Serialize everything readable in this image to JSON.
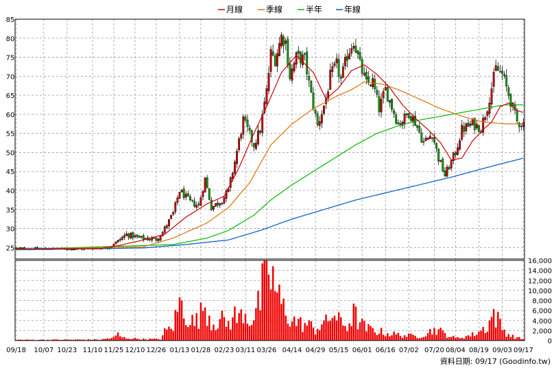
{
  "chart_data": {
    "type": "candlestick",
    "legend": [
      {
        "label": "月線",
        "color": "#cc0000"
      },
      {
        "label": "季線",
        "color": "#e07000"
      },
      {
        "label": "半年",
        "color": "#00bb00"
      },
      {
        "label": "年線",
        "color": "#0055cc"
      }
    ],
    "price_axis": {
      "min": 22,
      "max": 85,
      "ticks": [
        25,
        30,
        35,
        40,
        45,
        50,
        55,
        60,
        65,
        70,
        75,
        80,
        85
      ]
    },
    "volume_axis": {
      "min": 0,
      "max": 16000,
      "ticks": [
        0,
        2000,
        4000,
        6000,
        8000,
        10000,
        12000,
        14000,
        16000
      ],
      "tick_labels": [
        "0",
        "2,000",
        "4,000",
        "6,000",
        "8,000",
        "10,000",
        "12,000",
        "14,000",
        "16,000"
      ]
    },
    "x_labels": [
      "09/18",
      "10/07",
      "10/23",
      "11/10",
      "11/25",
      "12/10",
      "12/26",
      "01/13",
      "01/28",
      "02/23",
      "03/11",
      "03/26",
      "04/14",
      "04/29",
      "05/15",
      "06/01",
      "06/16",
      "07/02",
      "07/20",
      "08/04",
      "08/19",
      "09/03",
      "09/17"
    ],
    "x_label_index": [
      0,
      13,
      24,
      36,
      46,
      56,
      66,
      77,
      87,
      98,
      108,
      118,
      130,
      141,
      152,
      163,
      174,
      185,
      197,
      207,
      218,
      229,
      239
    ],
    "close_anchors": [
      [
        0,
        24.8
      ],
      [
        30,
        24.6
      ],
      [
        44,
        25.0
      ],
      [
        46,
        26.0
      ],
      [
        52,
        28.5
      ],
      [
        58,
        27.5
      ],
      [
        66,
        27.2
      ],
      [
        69,
        29.0
      ],
      [
        74,
        34.0
      ],
      [
        77,
        40.0
      ],
      [
        82,
        37.0
      ],
      [
        86,
        36.0
      ],
      [
        89,
        43.0
      ],
      [
        92,
        35.5
      ],
      [
        97,
        37.5
      ],
      [
        100,
        40.0
      ],
      [
        103,
        47.5
      ],
      [
        107,
        58.5
      ],
      [
        112,
        52.0
      ],
      [
        115,
        56.0
      ],
      [
        118,
        66.0
      ],
      [
        120,
        76.0
      ],
      [
        122,
        74.5
      ],
      [
        125,
        80.5
      ],
      [
        127,
        79.0
      ],
      [
        129,
        70.0
      ],
      [
        132,
        75.0
      ],
      [
        136,
        74.5
      ],
      [
        139,
        65.0
      ],
      [
        142,
        57.0
      ],
      [
        146,
        64.0
      ],
      [
        148,
        70.0
      ],
      [
        151,
        73.0
      ],
      [
        153,
        69.0
      ],
      [
        156,
        75.5
      ],
      [
        159,
        79.5
      ],
      [
        162,
        73.0
      ],
      [
        165,
        68.0
      ],
      [
        168,
        68.5
      ],
      [
        171,
        61.5
      ],
      [
        174,
        66.5
      ],
      [
        177,
        62.0
      ],
      [
        180,
        57.5
      ],
      [
        183,
        59.0
      ],
      [
        185,
        60.5
      ],
      [
        188,
        58.0
      ],
      [
        192,
        52.5
      ],
      [
        196,
        55.0
      ],
      [
        199,
        48.5
      ],
      [
        202,
        44.0
      ],
      [
        205,
        47.5
      ],
      [
        207,
        50.0
      ],
      [
        210,
        56.0
      ],
      [
        215,
        57.5
      ],
      [
        219,
        56.5
      ],
      [
        222,
        62.0
      ],
      [
        226,
        72.0
      ],
      [
        229,
        70.5
      ],
      [
        231,
        67.0
      ],
      [
        233,
        63.5
      ],
      [
        236,
        58.0
      ],
      [
        239,
        57.5
      ]
    ],
    "ma_month": [
      [
        0,
        24.7
      ],
      [
        40,
        24.7
      ],
      [
        48,
        25.5
      ],
      [
        60,
        27.0
      ],
      [
        70,
        28.5
      ],
      [
        80,
        33.0
      ],
      [
        90,
        36.5
      ],
      [
        98,
        38.5
      ],
      [
        105,
        46.0
      ],
      [
        112,
        55.0
      ],
      [
        118,
        62.0
      ],
      [
        125,
        71.0
      ],
      [
        132,
        75.5
      ],
      [
        140,
        71.0
      ],
      [
        146,
        64.0
      ],
      [
        152,
        67.0
      ],
      [
        158,
        71.5
      ],
      [
        164,
        73.0
      ],
      [
        170,
        70.5
      ],
      [
        176,
        67.0
      ],
      [
        182,
        62.5
      ],
      [
        188,
        59.0
      ],
      [
        194,
        56.0
      ],
      [
        200,
        52.5
      ],
      [
        205,
        48.0
      ],
      [
        210,
        48.5
      ],
      [
        215,
        53.0
      ],
      [
        220,
        56.0
      ],
      [
        224,
        58.0
      ],
      [
        228,
        62.0
      ],
      [
        232,
        63.0
      ],
      [
        236,
        61.0
      ],
      [
        239,
        60.5
      ]
    ],
    "ma_quarter": [
      [
        0,
        24.6
      ],
      [
        60,
        25.2
      ],
      [
        74,
        27.5
      ],
      [
        90,
        31.5
      ],
      [
        100,
        35.5
      ],
      [
        110,
        42.0
      ],
      [
        120,
        52.0
      ],
      [
        130,
        57.5
      ],
      [
        140,
        61.5
      ],
      [
        150,
        64.5
      ],
      [
        158,
        66.5
      ],
      [
        164,
        68.5
      ],
      [
        172,
        68.0
      ],
      [
        180,
        66.5
      ],
      [
        190,
        64.0
      ],
      [
        200,
        61.5
      ],
      [
        210,
        59.5
      ],
      [
        220,
        58.0
      ],
      [
        230,
        57.5
      ],
      [
        239,
        57.5
      ]
    ],
    "ma_half": [
      [
        0,
        24.5
      ],
      [
        74,
        25.8
      ],
      [
        90,
        27.5
      ],
      [
        100,
        29.5
      ],
      [
        112,
        33.5
      ],
      [
        120,
        37.5
      ],
      [
        130,
        41.5
      ],
      [
        140,
        45.0
      ],
      [
        150,
        48.5
      ],
      [
        160,
        52.0
      ],
      [
        170,
        55.0
      ],
      [
        180,
        57.0
      ],
      [
        190,
        58.5
      ],
      [
        200,
        59.5
      ],
      [
        210,
        60.5
      ],
      [
        220,
        61.5
      ],
      [
        230,
        62.5
      ],
      [
        239,
        62.5
      ]
    ],
    "ma_year": [
      [
        0,
        24.4
      ],
      [
        60,
        24.9
      ],
      [
        80,
        25.8
      ],
      [
        100,
        27.0
      ],
      [
        115,
        29.5
      ],
      [
        130,
        32.5
      ],
      [
        145,
        35.0
      ],
      [
        160,
        37.5
      ],
      [
        175,
        39.5
      ],
      [
        190,
        41.5
      ],
      [
        205,
        43.5
      ],
      [
        215,
        45.0
      ],
      [
        225,
        46.5
      ],
      [
        239,
        48.5
      ]
    ],
    "volume_anchors": [
      [
        0,
        150
      ],
      [
        40,
        200
      ],
      [
        46,
        600
      ],
      [
        48,
        1300
      ],
      [
        50,
        600
      ],
      [
        60,
        300
      ],
      [
        68,
        300
      ],
      [
        70,
        1800
      ],
      [
        74,
        3000
      ],
      [
        77,
        8000
      ],
      [
        80,
        5500
      ],
      [
        84,
        3500
      ],
      [
        87,
        5500
      ],
      [
        89,
        7800
      ],
      [
        92,
        3800
      ],
      [
        97,
        4200
      ],
      [
        100,
        3500
      ],
      [
        103,
        5200
      ],
      [
        105,
        4400
      ],
      [
        107,
        6600
      ],
      [
        110,
        4200
      ],
      [
        112,
        5000
      ],
      [
        115,
        8200
      ],
      [
        117,
        13500
      ],
      [
        118,
        16000
      ],
      [
        120,
        13800
      ],
      [
        122,
        11000
      ],
      [
        124,
        8400
      ],
      [
        126,
        6800
      ],
      [
        128,
        5400
      ],
      [
        130,
        4300
      ],
      [
        134,
        3500
      ],
      [
        138,
        3200
      ],
      [
        141,
        2300
      ],
      [
        144,
        3600
      ],
      [
        147,
        3700
      ],
      [
        149,
        6000
      ],
      [
        152,
        4000
      ],
      [
        156,
        3000
      ],
      [
        159,
        5600
      ],
      [
        162,
        3600
      ],
      [
        165,
        2500
      ],
      [
        170,
        2000
      ],
      [
        175,
        1500
      ],
      [
        180,
        1200
      ],
      [
        185,
        1000
      ],
      [
        190,
        900
      ],
      [
        195,
        1900
      ],
      [
        198,
        2400
      ],
      [
        201,
        1600
      ],
      [
        204,
        1000
      ],
      [
        207,
        500
      ],
      [
        210,
        700
      ],
      [
        215,
        1200
      ],
      [
        219,
        2100
      ],
      [
        222,
        3000
      ],
      [
        225,
        5700
      ],
      [
        227,
        4200
      ],
      [
        230,
        2000
      ],
      [
        233,
        1000
      ],
      [
        236,
        600
      ],
      [
        239,
        300
      ]
    ],
    "total_days": 240,
    "source_label": "資料日期: 09/17  (Goodinfo.tw)"
  }
}
